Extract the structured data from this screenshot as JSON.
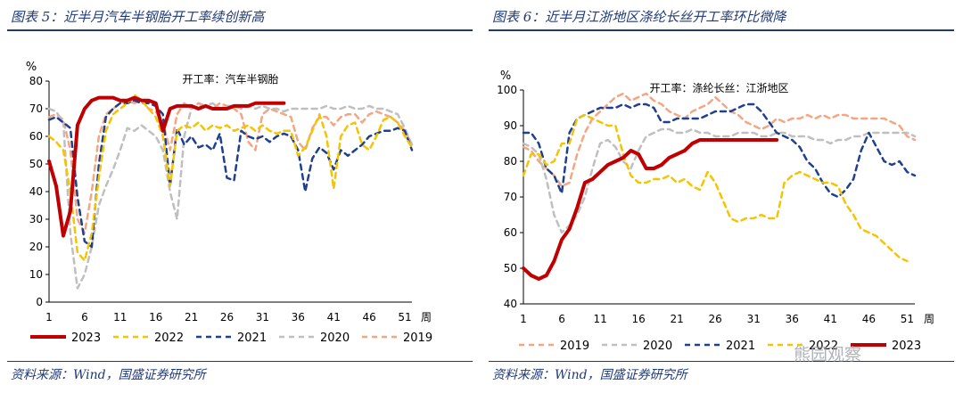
{
  "chart_data": [
    {
      "type": "line",
      "figure_label": "图表 5：近半月汽车半钢胎开工率续创新高",
      "source": "资料来源：Wind，国盛证券研究所",
      "title": "开工率：汽车半钢胎",
      "ylabel": "%",
      "xlabel": "周",
      "ylim": [
        0,
        80
      ],
      "yticks": [
        0,
        10,
        20,
        30,
        40,
        50,
        60,
        70,
        80
      ],
      "xlim": [
        1,
        52
      ],
      "xticks": [
        1,
        6,
        11,
        16,
        21,
        26,
        31,
        36,
        41,
        46,
        51
      ],
      "grid": false,
      "legend_position": "bottom",
      "series": [
        {
          "name": "2023",
          "color": "#c00000",
          "dash": "solid",
          "width": 4,
          "x": [
            1,
            2,
            3,
            4,
            5,
            6,
            7,
            8,
            9,
            10,
            11,
            12,
            13,
            14,
            15,
            16,
            17,
            18,
            19,
            20,
            21,
            22,
            23,
            24,
            25,
            26,
            27,
            28,
            29,
            30,
            31,
            32,
            33,
            34
          ],
          "y": [
            51,
            42,
            24,
            33,
            64,
            70,
            73,
            74,
            74,
            74,
            73,
            73,
            74,
            73,
            73,
            72,
            62,
            70,
            71,
            71,
            71,
            70,
            71,
            70,
            70,
            70,
            71,
            71,
            71,
            72,
            72,
            72,
            72,
            72
          ]
        },
        {
          "name": "2022",
          "color": "#f5c400",
          "dash": "6,5",
          "width": 2.5,
          "x": [
            1,
            2,
            3,
            4,
            5,
            6,
            7,
            8,
            9,
            10,
            11,
            12,
            13,
            14,
            15,
            16,
            17,
            18,
            19,
            20,
            21,
            22,
            23,
            24,
            25,
            26,
            27,
            28,
            29,
            30,
            31,
            32,
            33,
            34,
            35,
            36,
            37,
            38,
            39,
            40,
            41,
            42,
            43,
            44,
            45,
            46,
            47,
            48,
            49,
            50,
            51,
            52
          ],
          "y": [
            60,
            58,
            55,
            40,
            18,
            15,
            25,
            45,
            62,
            68,
            70,
            72,
            75,
            73,
            70,
            67,
            60,
            42,
            62,
            64,
            63,
            65,
            62,
            64,
            63,
            64,
            62,
            63,
            64,
            62,
            64,
            62,
            61,
            62,
            62,
            53,
            56,
            62,
            68,
            60,
            41,
            60,
            64,
            65,
            57,
            55,
            60,
            66,
            67,
            65,
            60,
            56
          ]
        },
        {
          "name": "2021",
          "color": "#1f3f8f",
          "dash": "6,5",
          "width": 2.5,
          "x": [
            1,
            2,
            3,
            4,
            5,
            6,
            7,
            8,
            9,
            10,
            11,
            12,
            13,
            14,
            15,
            16,
            17,
            18,
            19,
            20,
            21,
            22,
            23,
            24,
            25,
            26,
            27,
            28,
            29,
            30,
            31,
            32,
            33,
            34,
            35,
            36,
            37,
            38,
            39,
            40,
            41,
            42,
            43,
            44,
            45,
            46,
            47,
            48,
            49,
            50,
            51,
            52
          ],
          "y": [
            66,
            67,
            65,
            63,
            38,
            22,
            20,
            50,
            67,
            70,
            72,
            72,
            73,
            72,
            72,
            71,
            68,
            42,
            63,
            57,
            60,
            56,
            57,
            55,
            61,
            45,
            44,
            62,
            60,
            59,
            60,
            58,
            60,
            61,
            60,
            55,
            40,
            52,
            56,
            54,
            48,
            55,
            53,
            55,
            57,
            60,
            61,
            62,
            62,
            63,
            62,
            55
          ]
        },
        {
          "name": "2020",
          "color": "#bfbfbf",
          "dash": "6,5",
          "width": 2.5,
          "x": [
            1,
            2,
            3,
            4,
            5,
            6,
            7,
            8,
            9,
            10,
            11,
            12,
            13,
            14,
            15,
            16,
            17,
            18,
            19,
            20,
            21,
            22,
            23,
            24,
            25,
            26,
            27,
            28,
            29,
            30,
            31,
            32,
            33,
            34,
            35,
            36,
            37,
            38,
            39,
            40,
            41,
            42,
            43,
            44,
            45,
            46,
            47,
            48,
            49,
            50,
            51,
            52
          ],
          "y": [
            70,
            69,
            65,
            25,
            5,
            10,
            20,
            35,
            42,
            48,
            55,
            63,
            62,
            64,
            62,
            60,
            55,
            40,
            30,
            60,
            70,
            71,
            71,
            72,
            70,
            71,
            71,
            70,
            71,
            70,
            71,
            70,
            70,
            69,
            70,
            70,
            70,
            70,
            70,
            71,
            70,
            70,
            71,
            70,
            70,
            71,
            70,
            70,
            69,
            68,
            63,
            57
          ]
        },
        {
          "name": "2019",
          "color": "#f4a582",
          "dash": "6,5",
          "width": 2.5,
          "x": [
            1,
            2,
            3,
            4,
            5,
            6,
            7,
            8,
            9,
            10,
            11,
            12,
            13,
            14,
            15,
            16,
            17,
            18,
            19,
            20,
            21,
            22,
            23,
            24,
            25,
            26,
            27,
            28,
            29,
            30,
            31,
            32,
            33,
            34,
            35,
            36,
            37,
            38,
            39,
            40,
            41,
            42,
            43,
            44,
            45,
            46,
            47,
            48,
            49,
            50,
            51,
            52
          ],
          "y": [
            67,
            68,
            66,
            55,
            30,
            25,
            40,
            60,
            68,
            70,
            72,
            73,
            72,
            73,
            70,
            69,
            65,
            55,
            68,
            72,
            70,
            72,
            71,
            70,
            72,
            71,
            70,
            68,
            58,
            55,
            68,
            70,
            69,
            68,
            67,
            58,
            55,
            63,
            67,
            67,
            64,
            67,
            68,
            68,
            65,
            68,
            69,
            68,
            67,
            65,
            62,
            57
          ]
        }
      ]
    },
    {
      "type": "line",
      "figure_label": "图表 6：近半月江浙地区涤纶长丝开工率环比微降",
      "source": "资料来源：Wind，国盛证券研究所",
      "title": "开工率：涤纶长丝：江浙地区",
      "ylabel": "%",
      "xlabel": "周",
      "ylim": [
        40,
        100
      ],
      "yticks": [
        40,
        50,
        60,
        70,
        80,
        90,
        100
      ],
      "xlim": [
        1,
        52
      ],
      "xticks": [
        1,
        6,
        11,
        16,
        21,
        26,
        31,
        36,
        41,
        46,
        51
      ],
      "grid": false,
      "legend_position": "bottom",
      "series": [
        {
          "name": "2019",
          "color": "#f4a582",
          "dash": "6,5",
          "width": 2.5,
          "x": [
            1,
            2,
            3,
            4,
            5,
            6,
            7,
            8,
            9,
            10,
            11,
            12,
            13,
            14,
            15,
            16,
            17,
            18,
            19,
            20,
            21,
            22,
            23,
            24,
            25,
            26,
            27,
            28,
            29,
            30,
            31,
            32,
            33,
            34,
            35,
            36,
            37,
            38,
            39,
            40,
            41,
            42,
            43,
            44,
            45,
            46,
            47,
            48,
            49,
            50,
            51,
            52
          ],
          "y": [
            84,
            83,
            80,
            78,
            76,
            73,
            74,
            82,
            88,
            92,
            94,
            96,
            98,
            99,
            97,
            98,
            99,
            97,
            96,
            94,
            93,
            92,
            94,
            95,
            96,
            98,
            96,
            94,
            93,
            91,
            90,
            89,
            90,
            92,
            91,
            92,
            92,
            93,
            92,
            93,
            92,
            93,
            93,
            92,
            92,
            92,
            92,
            92,
            91,
            90,
            87,
            86
          ]
        },
        {
          "name": "2020",
          "color": "#bfbfbf",
          "dash": "6,5",
          "width": 2.5,
          "x": [
            1,
            2,
            3,
            4,
            5,
            6,
            7,
            8,
            9,
            10,
            11,
            12,
            13,
            14,
            15,
            16,
            17,
            18,
            19,
            20,
            21,
            22,
            23,
            24,
            25,
            26,
            27,
            28,
            29,
            30,
            31,
            32,
            33,
            34,
            35,
            36,
            37,
            38,
            39,
            40,
            41,
            42,
            43,
            44,
            45,
            46,
            47,
            48,
            49,
            50,
            51,
            52
          ],
          "y": [
            85,
            84,
            82,
            75,
            65,
            60,
            62,
            65,
            70,
            78,
            85,
            86,
            84,
            80,
            78,
            83,
            87,
            88,
            89,
            89,
            88,
            88,
            89,
            88,
            88,
            87,
            87,
            87,
            88,
            88,
            88,
            87,
            87,
            88,
            88,
            87,
            87,
            87,
            86,
            86,
            85,
            86,
            86,
            87,
            87,
            88,
            88,
            88,
            88,
            88,
            88,
            87
          ]
        },
        {
          "name": "2021",
          "color": "#1f3f8f",
          "dash": "6,5",
          "width": 2.5,
          "x": [
            1,
            2,
            3,
            4,
            5,
            6,
            7,
            8,
            9,
            10,
            11,
            12,
            13,
            14,
            15,
            16,
            17,
            18,
            19,
            20,
            21,
            22,
            23,
            24,
            25,
            26,
            27,
            28,
            29,
            30,
            31,
            32,
            33,
            34,
            35,
            36,
            37,
            38,
            39,
            40,
            41,
            42,
            43,
            44,
            45,
            46,
            47,
            48,
            49,
            50,
            51,
            52
          ],
          "y": [
            88,
            88,
            85,
            78,
            76,
            71,
            88,
            92,
            93,
            94,
            95,
            95,
            95,
            96,
            95,
            96,
            96,
            95,
            91,
            91,
            92,
            92,
            92,
            92,
            93,
            94,
            94,
            94,
            95,
            96,
            96,
            94,
            91,
            88,
            87,
            86,
            84,
            80,
            78,
            74,
            71,
            70,
            72,
            75,
            83,
            88,
            84,
            80,
            79,
            80,
            77,
            76
          ]
        },
        {
          "name": "2022",
          "color": "#f5c400",
          "dash": "6,5",
          "width": 2.5,
          "x": [
            1,
            2,
            3,
            4,
            5,
            6,
            7,
            8,
            9,
            10,
            11,
            12,
            13,
            14,
            15,
            16,
            17,
            18,
            19,
            20,
            21,
            22,
            23,
            24,
            25,
            26,
            27,
            28,
            29,
            30,
            31,
            32,
            33,
            34,
            35,
            36,
            37,
            38,
            39,
            40,
            41,
            42,
            43,
            44,
            45,
            46,
            47,
            48,
            49,
            50,
            51,
            52
          ],
          "y": [
            76,
            82,
            82,
            79,
            80,
            85,
            85,
            92,
            93,
            92,
            91,
            90,
            90,
            82,
            76,
            74,
            74,
            75,
            75,
            76,
            74,
            75,
            73,
            72,
            77,
            74,
            69,
            64,
            63,
            64,
            64,
            65,
            64,
            64,
            74,
            76,
            77,
            76,
            75,
            74,
            74,
            73,
            68,
            65,
            61,
            60,
            59,
            57,
            55,
            53,
            52,
            null
          ]
        },
        {
          "name": "2023",
          "color": "#c00000",
          "dash": "solid",
          "width": 4,
          "x": [
            1,
            2,
            3,
            4,
            5,
            6,
            7,
            8,
            9,
            10,
            11,
            12,
            13,
            14,
            15,
            16,
            17,
            18,
            19,
            20,
            21,
            22,
            23,
            24,
            25,
            26,
            27,
            28,
            29,
            30,
            31,
            32,
            33,
            34
          ],
          "y": [
            50,
            48,
            47,
            48,
            52,
            58,
            61,
            67,
            74,
            75,
            77,
            79,
            80,
            81,
            83,
            82,
            78,
            78,
            79,
            81,
            82,
            83,
            85,
            86,
            86,
            86,
            86,
            86,
            86,
            86,
            86,
            86,
            86,
            86
          ]
        }
      ]
    }
  ],
  "watermark": "熊园观察"
}
